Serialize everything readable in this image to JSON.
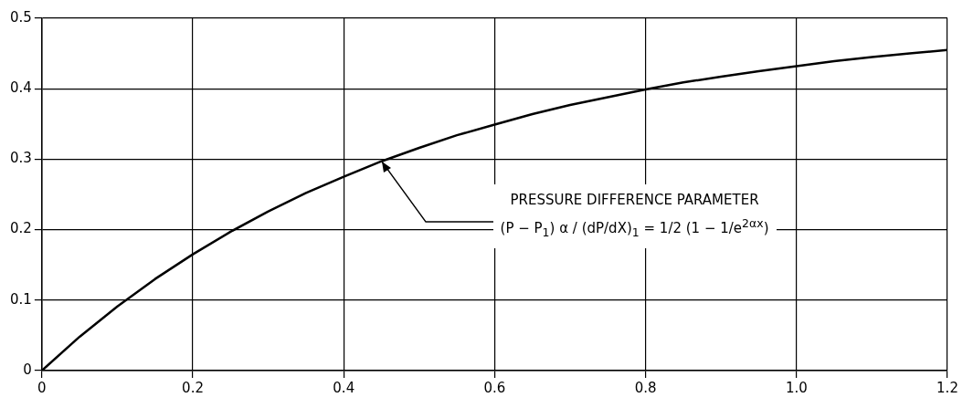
{
  "chart_data": {
    "type": "line",
    "x": [
      0,
      0.05,
      0.1,
      0.15,
      0.2,
      0.25,
      0.3,
      0.35,
      0.4,
      0.45,
      0.5,
      0.55,
      0.6,
      0.65,
      0.7,
      0.75,
      0.8,
      0.85,
      0.9,
      0.95,
      1.0,
      1.05,
      1.1,
      1.15,
      1.2
    ],
    "series": [
      {
        "color": "#000000",
        "values": [
          0,
          0.048,
          0.091,
          0.13,
          0.165,
          0.197,
          0.226,
          0.252,
          0.275,
          0.297,
          0.316,
          0.334,
          0.349,
          0.364,
          0.377,
          0.388,
          0.399,
          0.409,
          0.417,
          0.425,
          0.432,
          0.439,
          0.445,
          0.45,
          0.455
        ]
      }
    ],
    "xlim": [
      0,
      1.2
    ],
    "ylim": [
      0,
      0.5
    ],
    "xticks": [
      0,
      0.2,
      0.4,
      0.6,
      0.8,
      {
        "value": 1.0,
        "label": "1.0"
      },
      1.2
    ],
    "yticks": [
      0,
      0.1,
      0.2,
      0.3,
      0.4,
      0.5
    ],
    "grid": true,
    "marker": "none",
    "line_style": "solid",
    "legend": false,
    "annotations": [
      "PRESSURE DIFFERENCE PARAMETER",
      {
        "text": "(P − P$_{1}$) α / (dP/dX)$_{1}$ = 1/2 (1 − 1/e$^{2αx}$)",
        "x": 0.45,
        "y": 0.297
      }
    ]
  }
}
